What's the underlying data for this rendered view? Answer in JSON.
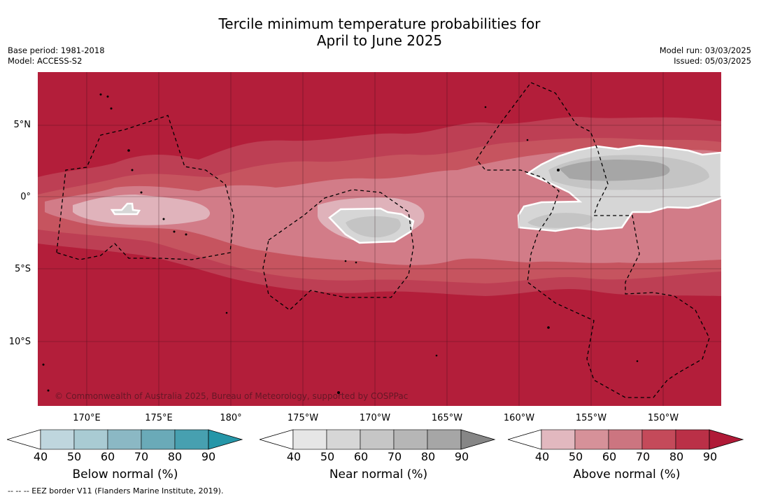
{
  "title": {
    "line1": "Tercile minimum temperature probabilities for",
    "line2": "April to June 2025"
  },
  "meta": {
    "base_period": "Base period: 1981-2018",
    "model": "Model: ACCESS-S2",
    "model_run": "Model run: 03/03/2025",
    "issued": "Issued: 05/03/2025"
  },
  "map": {
    "lat_labels": [
      "5°N",
      "0°",
      "5°S",
      "10°S"
    ],
    "lon_labels": [
      "170°E",
      "175°E",
      "180°",
      "175°W",
      "170°W",
      "165°W",
      "160°W",
      "155°W",
      "150°W"
    ],
    "copyright": "© Commonwealth of Australia 2025, Bureau of Meteorology, supported by COSPPac",
    "background_color": "#b31e3a"
  },
  "colorbars": {
    "ticks": [
      "40",
      "50",
      "60",
      "70",
      "80",
      "90"
    ],
    "below": {
      "title": "Below normal (%)",
      "colors": [
        "#ffffff",
        "#bfd6de",
        "#a9cbd3",
        "#8bb8c4",
        "#6aaab8",
        "#47a0b0",
        "#2596a8"
      ]
    },
    "near": {
      "title": "Near normal (%)",
      "colors": [
        "#ffffff",
        "#e6e6e6",
        "#d6d6d6",
        "#c6c6c6",
        "#b6b6b6",
        "#a6a6a6",
        "#868686"
      ]
    },
    "above": {
      "title": "Above normal (%)",
      "colors": [
        "#ffffff",
        "#e2b8bf",
        "#d69199",
        "#cc7580",
        "#c44a5a",
        "#ba3047",
        "#b01a37"
      ]
    }
  },
  "footnote": "--  --  -- EEZ border V11 (Flanders Marine Institute, 2019)."
}
